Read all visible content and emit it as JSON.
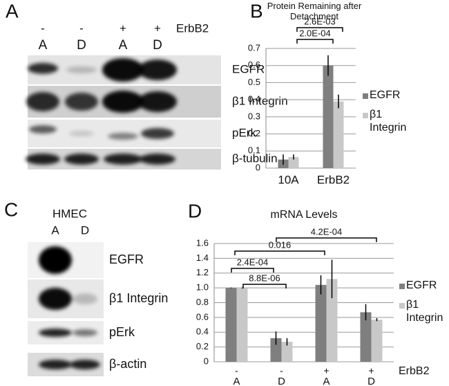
{
  "panel_labels": [
    "A",
    "B",
    "C",
    "D"
  ],
  "blot_a": {
    "signs": [
      "-",
      "-",
      "+",
      "+"
    ],
    "condition": "ErbB2",
    "lanes": [
      "A",
      "D",
      "A",
      "D"
    ],
    "proteins": [
      "EGFR",
      "β1 Integrin",
      "pErk",
      "β-tubulin"
    ]
  },
  "blot_c": {
    "cell": "HMEC",
    "lanes": [
      "A",
      "D"
    ],
    "proteins": [
      "EGFR",
      "β1 Integrin",
      "pErk",
      "β-actin"
    ]
  },
  "chart_data": [
    {
      "type": "bar",
      "title": "Protein Remaining after Detachment",
      "categories": [
        "10A",
        "ErbB2"
      ],
      "series": [
        {
          "name": "EGFR",
          "color": "#7f7f7f",
          "values": [
            0.05,
            0.6
          ],
          "errors": [
            0.03,
            0.06
          ]
        },
        {
          "name": "β1 Integrin",
          "color": "#c8c8c8",
          "values": [
            0.065,
            0.39
          ],
          "errors": [
            0.015,
            0.04
          ]
        }
      ],
      "ylim": [
        0,
        0.7
      ],
      "yticks": [
        0,
        0.1,
        0.2,
        0.3,
        0.4,
        0.5,
        0.6,
        0.7
      ],
      "grid": true,
      "annotations": [
        "2.0E-04",
        "2.6E-03"
      ]
    },
    {
      "type": "bar",
      "title": "mRNA Levels",
      "categories": [
        "A",
        "D",
        "A",
        "D"
      ],
      "category_signs": [
        "-",
        "-",
        "+",
        "+"
      ],
      "category_group_label": "ErbB2",
      "series": [
        {
          "name": "EGFR",
          "color": "#7f7f7f",
          "values": [
            1.0,
            0.32,
            1.04,
            0.67
          ],
          "errors": [
            0.005,
            0.09,
            0.13,
            0.11
          ]
        },
        {
          "name": "β1 Integrin",
          "color": "#c8c8c8",
          "values": [
            1.0,
            0.27,
            1.12,
            0.57
          ],
          "errors": [
            0.005,
            0.05,
            0.26,
            0.02
          ]
        }
      ],
      "ylim": [
        0,
        1.6
      ],
      "yticks": [
        0,
        0.2,
        0.4,
        0.6,
        0.8,
        {
          "value": 1,
          "label": "1.0"
        },
        1.2,
        1.4,
        1.6
      ],
      "grid": true,
      "annotations": [
        "2.4E-04",
        "8.8E-06",
        "0.016",
        "4.2E-04"
      ]
    }
  ]
}
